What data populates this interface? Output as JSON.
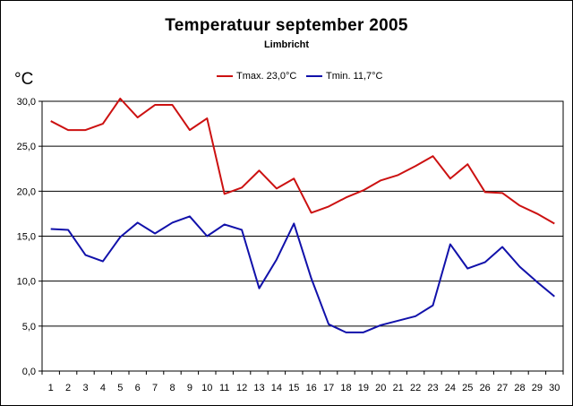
{
  "chart_data": {
    "type": "line",
    "title": "Temperatuur september 2005",
    "subtitle": "Limbricht",
    "ylabel": "°C",
    "ylim": [
      0,
      30
    ],
    "yticks": [
      "0,0",
      "5,0",
      "10,0",
      "15,0",
      "20,0",
      "25,0",
      "30,0"
    ],
    "ytick_values": [
      0,
      5,
      10,
      15,
      20,
      25,
      30
    ],
    "x": [
      1,
      2,
      3,
      4,
      5,
      6,
      7,
      8,
      9,
      10,
      11,
      12,
      13,
      14,
      15,
      16,
      17,
      18,
      19,
      20,
      21,
      22,
      23,
      24,
      25,
      26,
      27,
      28,
      29,
      30
    ],
    "grid": true,
    "legend_position": "top-center",
    "series": [
      {
        "name": "Tmax. 23,0°C",
        "color": "#cc1111",
        "values": [
          27.8,
          26.8,
          26.8,
          27.5,
          30.3,
          28.2,
          29.6,
          29.6,
          26.8,
          28.1,
          19.7,
          20.4,
          22.3,
          20.3,
          21.4,
          17.6,
          18.3,
          19.3,
          20.1,
          21.2,
          21.8,
          22.8,
          23.9,
          21.4,
          23.0,
          19.9,
          19.8,
          18.4,
          17.5,
          16.4
        ]
      },
      {
        "name": "Tmin. 11,7°C",
        "color": "#1111aa",
        "values": [
          15.8,
          15.7,
          12.9,
          12.2,
          14.9,
          16.5,
          15.3,
          16.5,
          17.2,
          15.0,
          16.3,
          15.7,
          9.2,
          12.4,
          16.4,
          10.3,
          5.2,
          4.3,
          4.3,
          5.1,
          5.6,
          6.1,
          7.3,
          14.1,
          11.4,
          12.1,
          13.8,
          11.6,
          9.9,
          8.3
        ]
      }
    ]
  }
}
